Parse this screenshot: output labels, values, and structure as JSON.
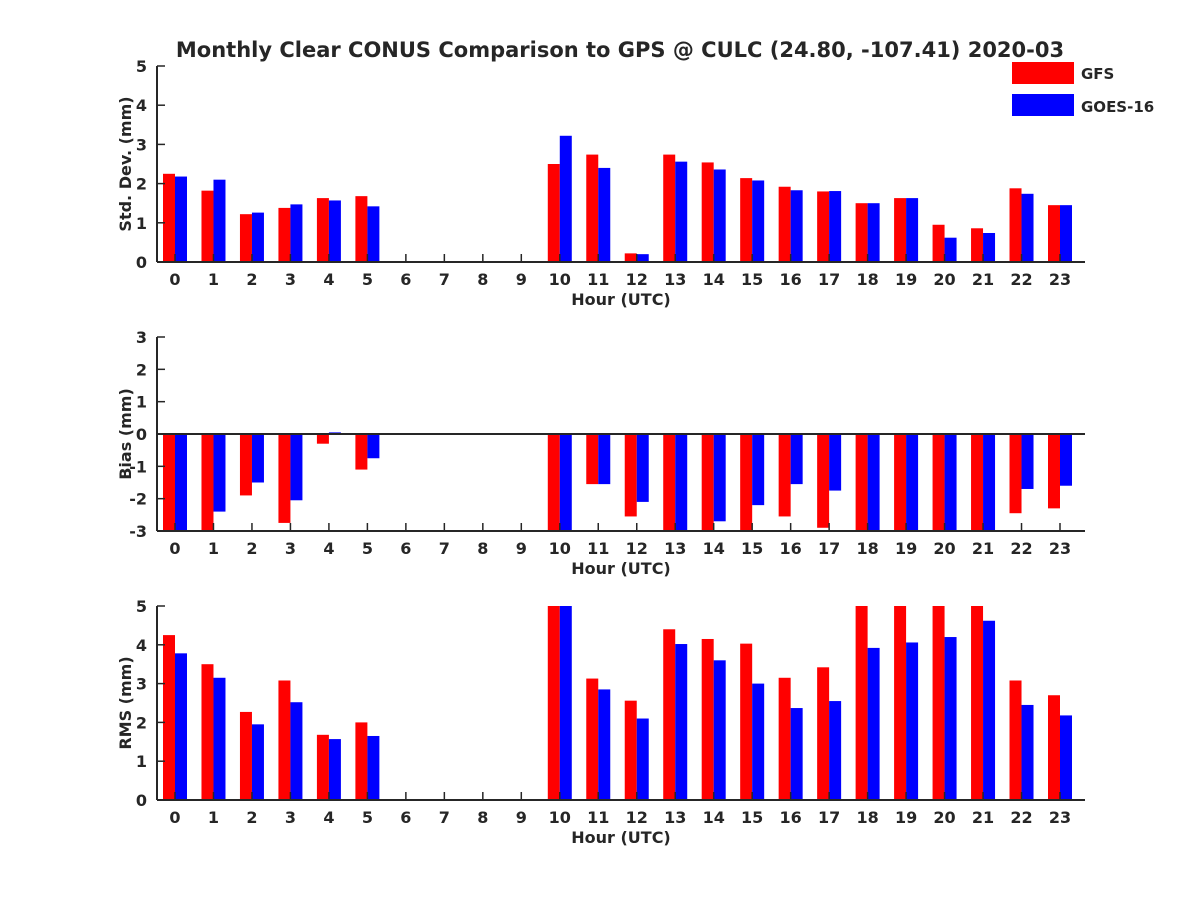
{
  "title": "Monthly Clear CONUS Comparison to GPS @ CULC (24.80, -107.41) 2020-03",
  "legend": {
    "placement": "top-right",
    "items": [
      {
        "label": "GFS",
        "color": "#ff0000"
      },
      {
        "label": "GOES-16",
        "color": "#0000ff"
      }
    ]
  },
  "chart_data": [
    {
      "type": "bar",
      "xlabel": "Hour (UTC)",
      "ylabel": "Std. Dev. (mm)",
      "ylim": [
        0,
        5
      ],
      "yticks": [
        "0",
        "1",
        "2",
        "3",
        "4",
        "5"
      ],
      "categories": [
        "0",
        "1",
        "2",
        "3",
        "4",
        "5",
        "6",
        "7",
        "8",
        "9",
        "10",
        "11",
        "12",
        "13",
        "14",
        "15",
        "16",
        "17",
        "18",
        "19",
        "20",
        "21",
        "22",
        "23"
      ],
      "series": [
        {
          "name": "GFS",
          "color": "#ff0000",
          "values": [
            2.25,
            1.82,
            1.22,
            1.38,
            1.63,
            1.68,
            null,
            null,
            null,
            null,
            2.5,
            2.74,
            0.22,
            2.74,
            2.54,
            2.14,
            1.92,
            1.8,
            1.5,
            1.63,
            0.95,
            0.86,
            1.88,
            1.45
          ]
        },
        {
          "name": "GOES-16",
          "color": "#0000ff",
          "values": [
            2.18,
            2.1,
            1.26,
            1.47,
            1.57,
            1.42,
            null,
            null,
            null,
            null,
            3.22,
            2.4,
            0.2,
            2.56,
            2.36,
            2.08,
            1.83,
            1.81,
            1.5,
            1.63,
            0.62,
            0.74,
            1.74,
            1.45
          ]
        }
      ]
    },
    {
      "type": "bar",
      "xlabel": "Hour (UTC)",
      "ylabel": "Bias (mm)",
      "ylim": [
        -3,
        3
      ],
      "yticks": [
        "-3",
        "-2",
        "-1",
        "0",
        "1",
        "2",
        "3"
      ],
      "categories": [
        "0",
        "1",
        "2",
        "3",
        "4",
        "5",
        "6",
        "7",
        "8",
        "9",
        "10",
        "11",
        "12",
        "13",
        "14",
        "15",
        "16",
        "17",
        "18",
        "19",
        "20",
        "21",
        "22",
        "23"
      ],
      "series": [
        {
          "name": "GFS",
          "color": "#ff0000",
          "values": [
            -3.5,
            -3.5,
            -1.9,
            -2.75,
            -0.3,
            -1.1,
            null,
            null,
            null,
            null,
            -3.5,
            -1.55,
            -2.55,
            -3.5,
            -3.5,
            -3.5,
            -2.55,
            -2.9,
            -3.5,
            -3.5,
            -3.5,
            -3.5,
            -2.45,
            -2.3
          ]
        },
        {
          "name": "GOES-16",
          "color": "#0000ff",
          "values": [
            -3.5,
            -2.4,
            -1.5,
            -2.05,
            0.05,
            -0.75,
            null,
            null,
            null,
            null,
            -3.5,
            -1.55,
            -2.1,
            -3.5,
            -2.7,
            -2.2,
            -1.55,
            -1.75,
            -3.5,
            -3.5,
            -3.5,
            -3.5,
            -1.7,
            -1.6
          ]
        }
      ]
    },
    {
      "type": "bar",
      "xlabel": "Hour (UTC)",
      "ylabel": "RMS (mm)",
      "ylim": [
        0,
        5
      ],
      "yticks": [
        "0",
        "1",
        "2",
        "3",
        "4",
        "5"
      ],
      "categories": [
        "0",
        "1",
        "2",
        "3",
        "4",
        "5",
        "6",
        "7",
        "8",
        "9",
        "10",
        "11",
        "12",
        "13",
        "14",
        "15",
        "16",
        "17",
        "18",
        "19",
        "20",
        "21",
        "22",
        "23"
      ],
      "series": [
        {
          "name": "GFS",
          "color": "#ff0000",
          "values": [
            4.25,
            3.5,
            2.27,
            3.08,
            1.68,
            2.0,
            null,
            null,
            null,
            null,
            5.5,
            3.13,
            2.56,
            4.4,
            4.15,
            4.03,
            3.15,
            3.42,
            5.5,
            5.5,
            5.5,
            5.5,
            3.08,
            2.7
          ]
        },
        {
          "name": "GOES-16",
          "color": "#0000ff",
          "values": [
            3.78,
            3.15,
            1.95,
            2.52,
            1.57,
            1.65,
            null,
            null,
            null,
            null,
            5.5,
            2.85,
            2.1,
            4.02,
            3.6,
            3.0,
            2.37,
            2.55,
            3.92,
            4.06,
            4.2,
            4.62,
            2.45,
            2.18
          ]
        }
      ]
    }
  ]
}
